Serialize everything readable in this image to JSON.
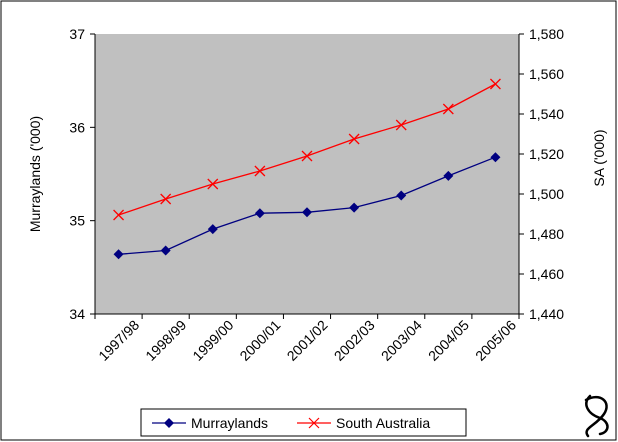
{
  "chart_data": {
    "type": "line",
    "title": "",
    "categories": [
      "1997/98",
      "1998/99",
      "1999/00",
      "2000/01",
      "2001/02",
      "2002/03",
      "2003/04",
      "2004/05",
      "2005/06"
    ],
    "y_left": {
      "label": "Murraylands ('000)",
      "range": [
        34,
        37
      ],
      "ticks": [
        "34",
        "35",
        "36",
        "37"
      ]
    },
    "y_right": {
      "label": "SA ('000)",
      "range": [
        1440,
        1580
      ],
      "ticks": [
        "1,440",
        "1,460",
        "1,480",
        "1,500",
        "1,520",
        "1,540",
        "1,560",
        "1,580"
      ]
    },
    "series": [
      {
        "name": "Murraylands",
        "axis": "left",
        "color": "#000080",
        "marker": "diamond",
        "values": [
          34.64,
          34.68,
          34.91,
          35.08,
          35.09,
          35.14,
          35.27,
          35.48,
          35.68
        ]
      },
      {
        "name": "South Australia",
        "axis": "right",
        "color": "#ff0000",
        "marker": "x",
        "values": [
          1489.5,
          1497.5,
          1505.0,
          1511.5,
          1519.0,
          1527.5,
          1534.5,
          1542.5,
          1555.0
        ]
      }
    ],
    "grid": false,
    "plot_background": "#c0c0c0",
    "legend_position": "bottom"
  }
}
